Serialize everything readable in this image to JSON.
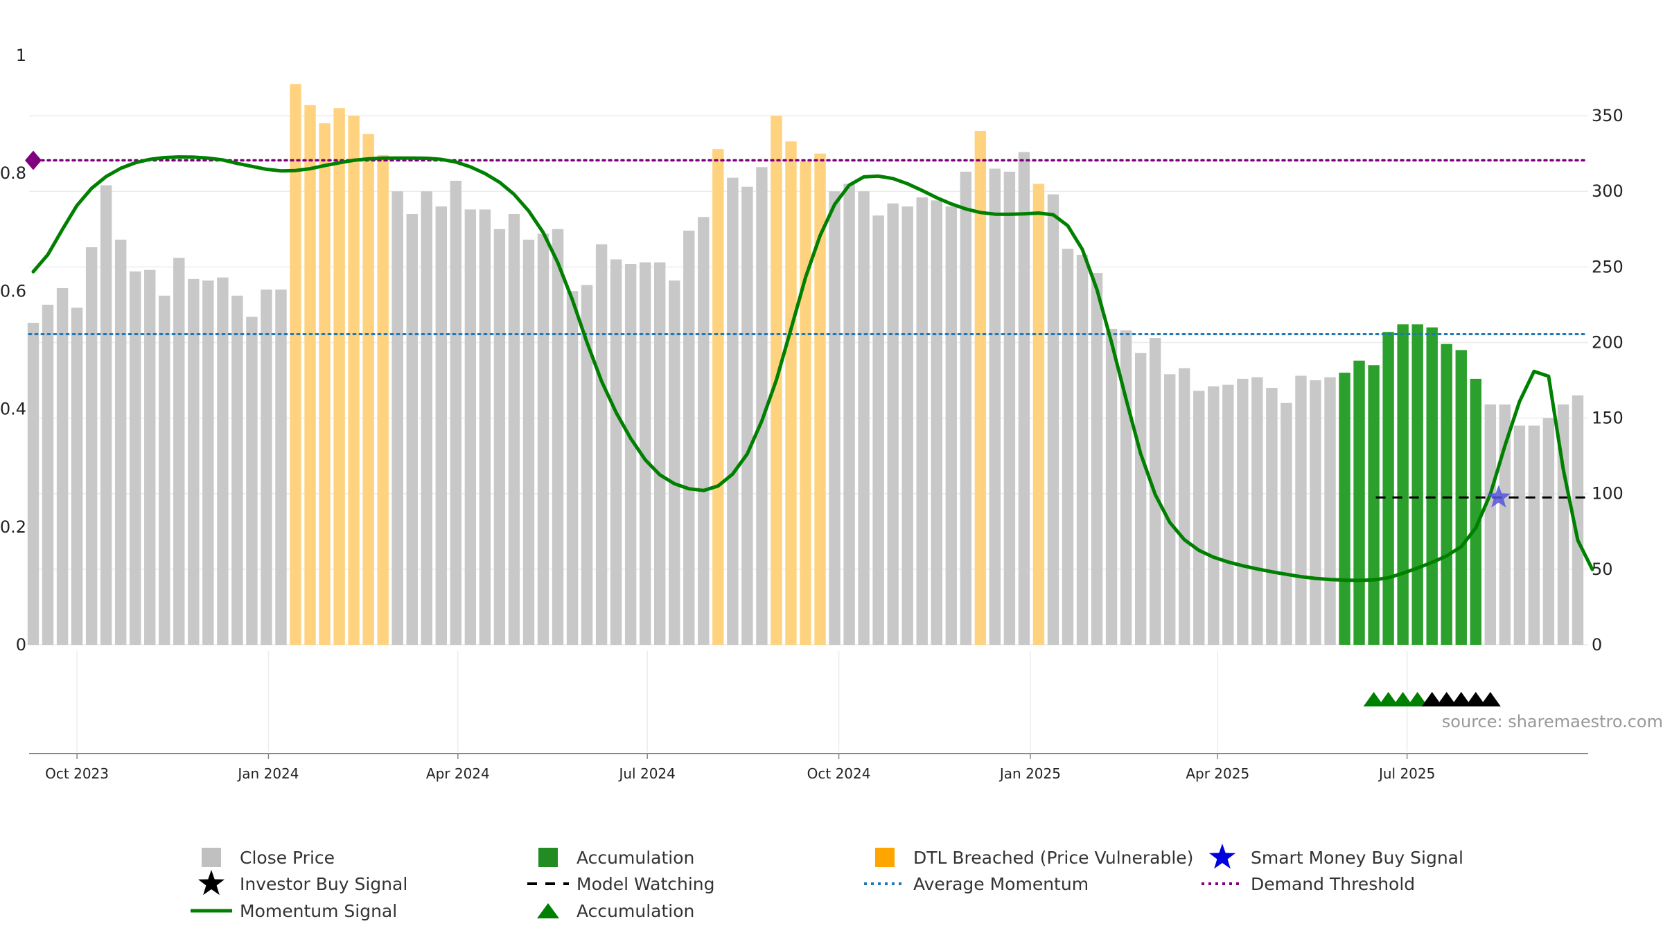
{
  "chart_data": {
    "type": "bar",
    "source": "source: sharemaestro.com",
    "left_axis": {
      "ticks": [
        {
          "v": 0,
          "label": "0"
        },
        {
          "v": 0.2,
          "label": "0.2"
        },
        {
          "v": 0.4,
          "label": "0.4"
        },
        {
          "v": 0.6,
          "label": "0.6"
        },
        {
          "v": 0.8,
          "label": "0.8"
        },
        {
          "v": 1,
          "label": "1"
        }
      ],
      "range": [
        0,
        1
      ]
    },
    "right_axis": {
      "ticks": [
        {
          "v": 0,
          "label": "0"
        },
        {
          "v": 50,
          "label": "50"
        },
        {
          "v": 100,
          "label": "100"
        },
        {
          "v": 150,
          "label": "150"
        },
        {
          "v": 200,
          "label": "200"
        },
        {
          "v": 250,
          "label": "250"
        },
        {
          "v": 300,
          "label": "300"
        },
        {
          "v": 350,
          "label": "350"
        }
      ],
      "range": [
        0,
        389
      ]
    },
    "x_axis": {
      "range": [
        "2023-09-08",
        "2025-09-26"
      ],
      "ticks": [
        {
          "date": "2023-10-01",
          "label": "Oct 2023"
        },
        {
          "date": "2024-01-01",
          "label": "Jan 2024"
        },
        {
          "date": "2024-04-01",
          "label": "Apr 2024"
        },
        {
          "date": "2024-07-01",
          "label": "Jul 2024"
        },
        {
          "date": "2024-10-01",
          "label": "Oct 2024"
        },
        {
          "date": "2025-01-01",
          "label": "Jan 2025"
        },
        {
          "date": "2025-04-01",
          "label": "Apr 2025"
        },
        {
          "date": "2025-07-01",
          "label": "Jul 2025"
        }
      ]
    },
    "grid": true,
    "colors": {
      "close": "#c8c8c8",
      "dtl": "#ffd27f",
      "accumulation": "#2ca02c",
      "momentum": "#008000",
      "average": "#1f77b4",
      "demand": "#800080",
      "watching": "#000000",
      "smart_money": "#0000ff",
      "investor": "#000000"
    },
    "bars": {
      "start_date": "2023-09-10",
      "step_days": 7,
      "close_prices": [
        213,
        225,
        236,
        223,
        263,
        304,
        268,
        247,
        248,
        231,
        256,
        242,
        241,
        243,
        231,
        217,
        235,
        235,
        371,
        357,
        345,
        355,
        350,
        338,
        324,
        300,
        285,
        300,
        290,
        307,
        288,
        288,
        275,
        285,
        268,
        272,
        275,
        234,
        238,
        265,
        255,
        252,
        253,
        253,
        241,
        274,
        283,
        328,
        309,
        303,
        316,
        350,
        333,
        320,
        325,
        300,
        305,
        300,
        284,
        292,
        290,
        296,
        294,
        290,
        313,
        340,
        315,
        313,
        326,
        305,
        298,
        262,
        258,
        246,
        209,
        208,
        193,
        203,
        179,
        183,
        168,
        171,
        172,
        176,
        177,
        170,
        160,
        178,
        175,
        177,
        180,
        188,
        185,
        207,
        212,
        212,
        210,
        199,
        195,
        176,
        159,
        159,
        145,
        145,
        150,
        159,
        165
      ],
      "dtl_indices": [
        18,
        19,
        20,
        21,
        22,
        23,
        24,
        47,
        51,
        52,
        53,
        54,
        65,
        69
      ],
      "accumulation_indices": [
        90,
        91,
        92,
        93,
        94,
        95,
        96,
        97,
        98,
        99
      ]
    },
    "series": [
      {
        "name": "Momentum Signal",
        "points": [
          [
            "2023-09-10",
            0.633
          ],
          [
            "2023-09-17",
            0.6619
          ],
          [
            "2023-09-24",
            0.7047
          ],
          [
            "2023-10-01",
            0.7455
          ],
          [
            "2023-10-08",
            0.7744
          ],
          [
            "2023-10-15",
            0.7945
          ],
          [
            "2023-10-22",
            0.8085
          ],
          [
            "2023-10-29",
            0.8179
          ],
          [
            "2023-11-05",
            0.8236
          ],
          [
            "2023-11-12",
            0.8267
          ],
          [
            "2023-11-19",
            0.8277
          ],
          [
            "2023-11-26",
            0.8274
          ],
          [
            "2023-12-03",
            0.8257
          ],
          [
            "2023-12-10",
            0.8227
          ],
          [
            "2023-12-17",
            0.8168
          ],
          [
            "2023-12-24",
            0.8117
          ],
          [
            "2023-12-31",
            0.8068
          ],
          [
            "2024-01-07",
            0.8041
          ],
          [
            "2024-01-14",
            0.8047
          ],
          [
            "2024-01-21",
            0.8077
          ],
          [
            "2024-01-28",
            0.8131
          ],
          [
            "2024-02-04",
            0.8177
          ],
          [
            "2024-02-11",
            0.8221
          ],
          [
            "2024-02-18",
            0.8245
          ],
          [
            "2024-02-25",
            0.8257
          ],
          [
            "2024-03-03",
            0.8258
          ],
          [
            "2024-03-10",
            0.8259
          ],
          [
            "2024-03-17",
            0.8255
          ],
          [
            "2024-03-24",
            0.8236
          ],
          [
            "2024-03-31",
            0.8192
          ],
          [
            "2024-04-07",
            0.8109
          ],
          [
            "2024-04-14",
            0.7997
          ],
          [
            "2024-04-21",
            0.7848
          ],
          [
            "2024-04-28",
            0.7643
          ],
          [
            "2024-05-05",
            0.7361
          ],
          [
            "2024-05-12",
            0.6994
          ],
          [
            "2024-05-19",
            0.6484
          ],
          [
            "2024-05-26",
            0.5855
          ],
          [
            "2024-06-02",
            0.5131
          ],
          [
            "2024-06-09",
            0.4474
          ],
          [
            "2024-06-16",
            0.3942
          ],
          [
            "2024-06-23",
            0.3502
          ],
          [
            "2024-06-30",
            0.3139
          ],
          [
            "2024-07-07",
            0.2885
          ],
          [
            "2024-07-14",
            0.2733
          ],
          [
            "2024-07-21",
            0.2647
          ],
          [
            "2024-07-28",
            0.2618
          ],
          [
            "2024-08-04",
            0.2694
          ],
          [
            "2024-08-11",
            0.2898
          ],
          [
            "2024-08-18",
            0.3239
          ],
          [
            "2024-08-25",
            0.3797
          ],
          [
            "2024-09-01",
            0.4491
          ],
          [
            "2024-09-08",
            0.5356
          ],
          [
            "2024-09-15",
            0.6233
          ],
          [
            "2024-09-22",
            0.6941
          ],
          [
            "2024-09-29",
            0.7474
          ],
          [
            "2024-10-06",
            0.7799
          ],
          [
            "2024-10-13",
            0.7939
          ],
          [
            "2024-10-20",
            0.7952
          ],
          [
            "2024-10-27",
            0.7911
          ],
          [
            "2024-11-03",
            0.7822
          ],
          [
            "2024-11-10",
            0.7708
          ],
          [
            "2024-11-17",
            0.7586
          ],
          [
            "2024-11-24",
            0.7481
          ],
          [
            "2024-12-01",
            0.7395
          ],
          [
            "2024-12-08",
            0.7335
          ],
          [
            "2024-12-15",
            0.7307
          ],
          [
            "2024-12-22",
            0.7304
          ],
          [
            "2024-12-29",
            0.7312
          ],
          [
            "2025-01-05",
            0.7326
          ],
          [
            "2025-01-12",
            0.7296
          ],
          [
            "2025-01-19",
            0.7111
          ],
          [
            "2025-01-26",
            0.6708
          ],
          [
            "2025-02-02",
            0.6027
          ],
          [
            "2025-02-09",
            0.5132
          ],
          [
            "2025-02-16",
            0.4168
          ],
          [
            "2025-02-23",
            0.3246
          ],
          [
            "2025-03-02",
            0.2549
          ],
          [
            "2025-03-09",
            0.2076
          ],
          [
            "2025-03-16",
            0.1784
          ],
          [
            "2025-03-23",
            0.1603
          ],
          [
            "2025-03-30",
            0.1487
          ],
          [
            "2025-04-06",
            0.1405
          ],
          [
            "2025-04-13",
            0.1342
          ],
          [
            "2025-04-20",
            0.1288
          ],
          [
            "2025-04-27",
            0.1239
          ],
          [
            "2025-05-04",
            0.1196
          ],
          [
            "2025-05-11",
            0.1156
          ],
          [
            "2025-05-18",
            0.1127
          ],
          [
            "2025-05-25",
            0.1108
          ],
          [
            "2025-06-01",
            0.1097
          ],
          [
            "2025-06-08",
            0.1093
          ],
          [
            "2025-06-15",
            0.1101
          ],
          [
            "2025-06-22",
            0.1138
          ],
          [
            "2025-06-29",
            0.1215
          ],
          [
            "2025-07-06",
            0.1302
          ],
          [
            "2025-07-13",
            0.1399
          ],
          [
            "2025-07-20",
            0.1508
          ],
          [
            "2025-07-27",
            0.1665
          ],
          [
            "2025-08-03",
            0.1983
          ],
          [
            "2025-08-10",
            0.2556
          ],
          [
            "2025-08-17",
            0.3375
          ],
          [
            "2025-08-24",
            0.4127
          ],
          [
            "2025-08-31",
            0.4639
          ],
          [
            "2025-09-07",
            0.4557
          ],
          [
            "2025-09-14",
            0.2982
          ],
          [
            "2025-09-21",
            0.1774
          ],
          [
            "2025-09-28",
            0.128
          ]
        ]
      }
    ],
    "average_momentum": 0.527,
    "demand_threshold": 0.822,
    "model_watching": {
      "from": "2025-06-16",
      "to": "2025-09-26",
      "value": 0.25
    },
    "smart_money_buy": {
      "date": "2025-08-14",
      "value": 0.25
    },
    "demand_marker": {
      "date": "2023-09-10",
      "value": 0.822
    },
    "accumulation_markers": [
      "2025-06-15",
      "2025-06-22",
      "2025-06-29",
      "2025-07-06"
    ],
    "investor_buy_markers": [
      "2025-07-13",
      "2025-07-20",
      "2025-07-27",
      "2025-08-03",
      "2025-08-10"
    ],
    "legend": [
      {
        "key": "close",
        "label": "Close Price",
        "symbol": "square",
        "color": "#c0c0c0"
      },
      {
        "key": "accum_bar",
        "label": "Accumulation",
        "symbol": "square",
        "color": "#228b22"
      },
      {
        "key": "dtl",
        "label": "DTL Breached (Price Vulnerable)",
        "symbol": "square",
        "color": "#ffa500"
      },
      {
        "key": "smart",
        "label": "Smart Money Buy Signal",
        "symbol": "star",
        "color": "#0000dd"
      },
      {
        "key": "investor",
        "label": "Investor Buy Signal",
        "symbol": "star",
        "color": "#000000"
      },
      {
        "key": "watching",
        "label": "Model Watching",
        "symbol": "dash",
        "color": "#000000"
      },
      {
        "key": "average",
        "label": "Average Momentum",
        "symbol": "dotted",
        "color": "#1f77b4"
      },
      {
        "key": "demand",
        "label": "Demand Threshold",
        "symbol": "dotted",
        "color": "#800080"
      },
      {
        "key": "momentum",
        "label": "Momentum Signal",
        "symbol": "line",
        "color": "#008000"
      },
      {
        "key": "accum_tri",
        "label": "Accumulation",
        "symbol": "triangle",
        "color": "#008000"
      }
    ]
  }
}
